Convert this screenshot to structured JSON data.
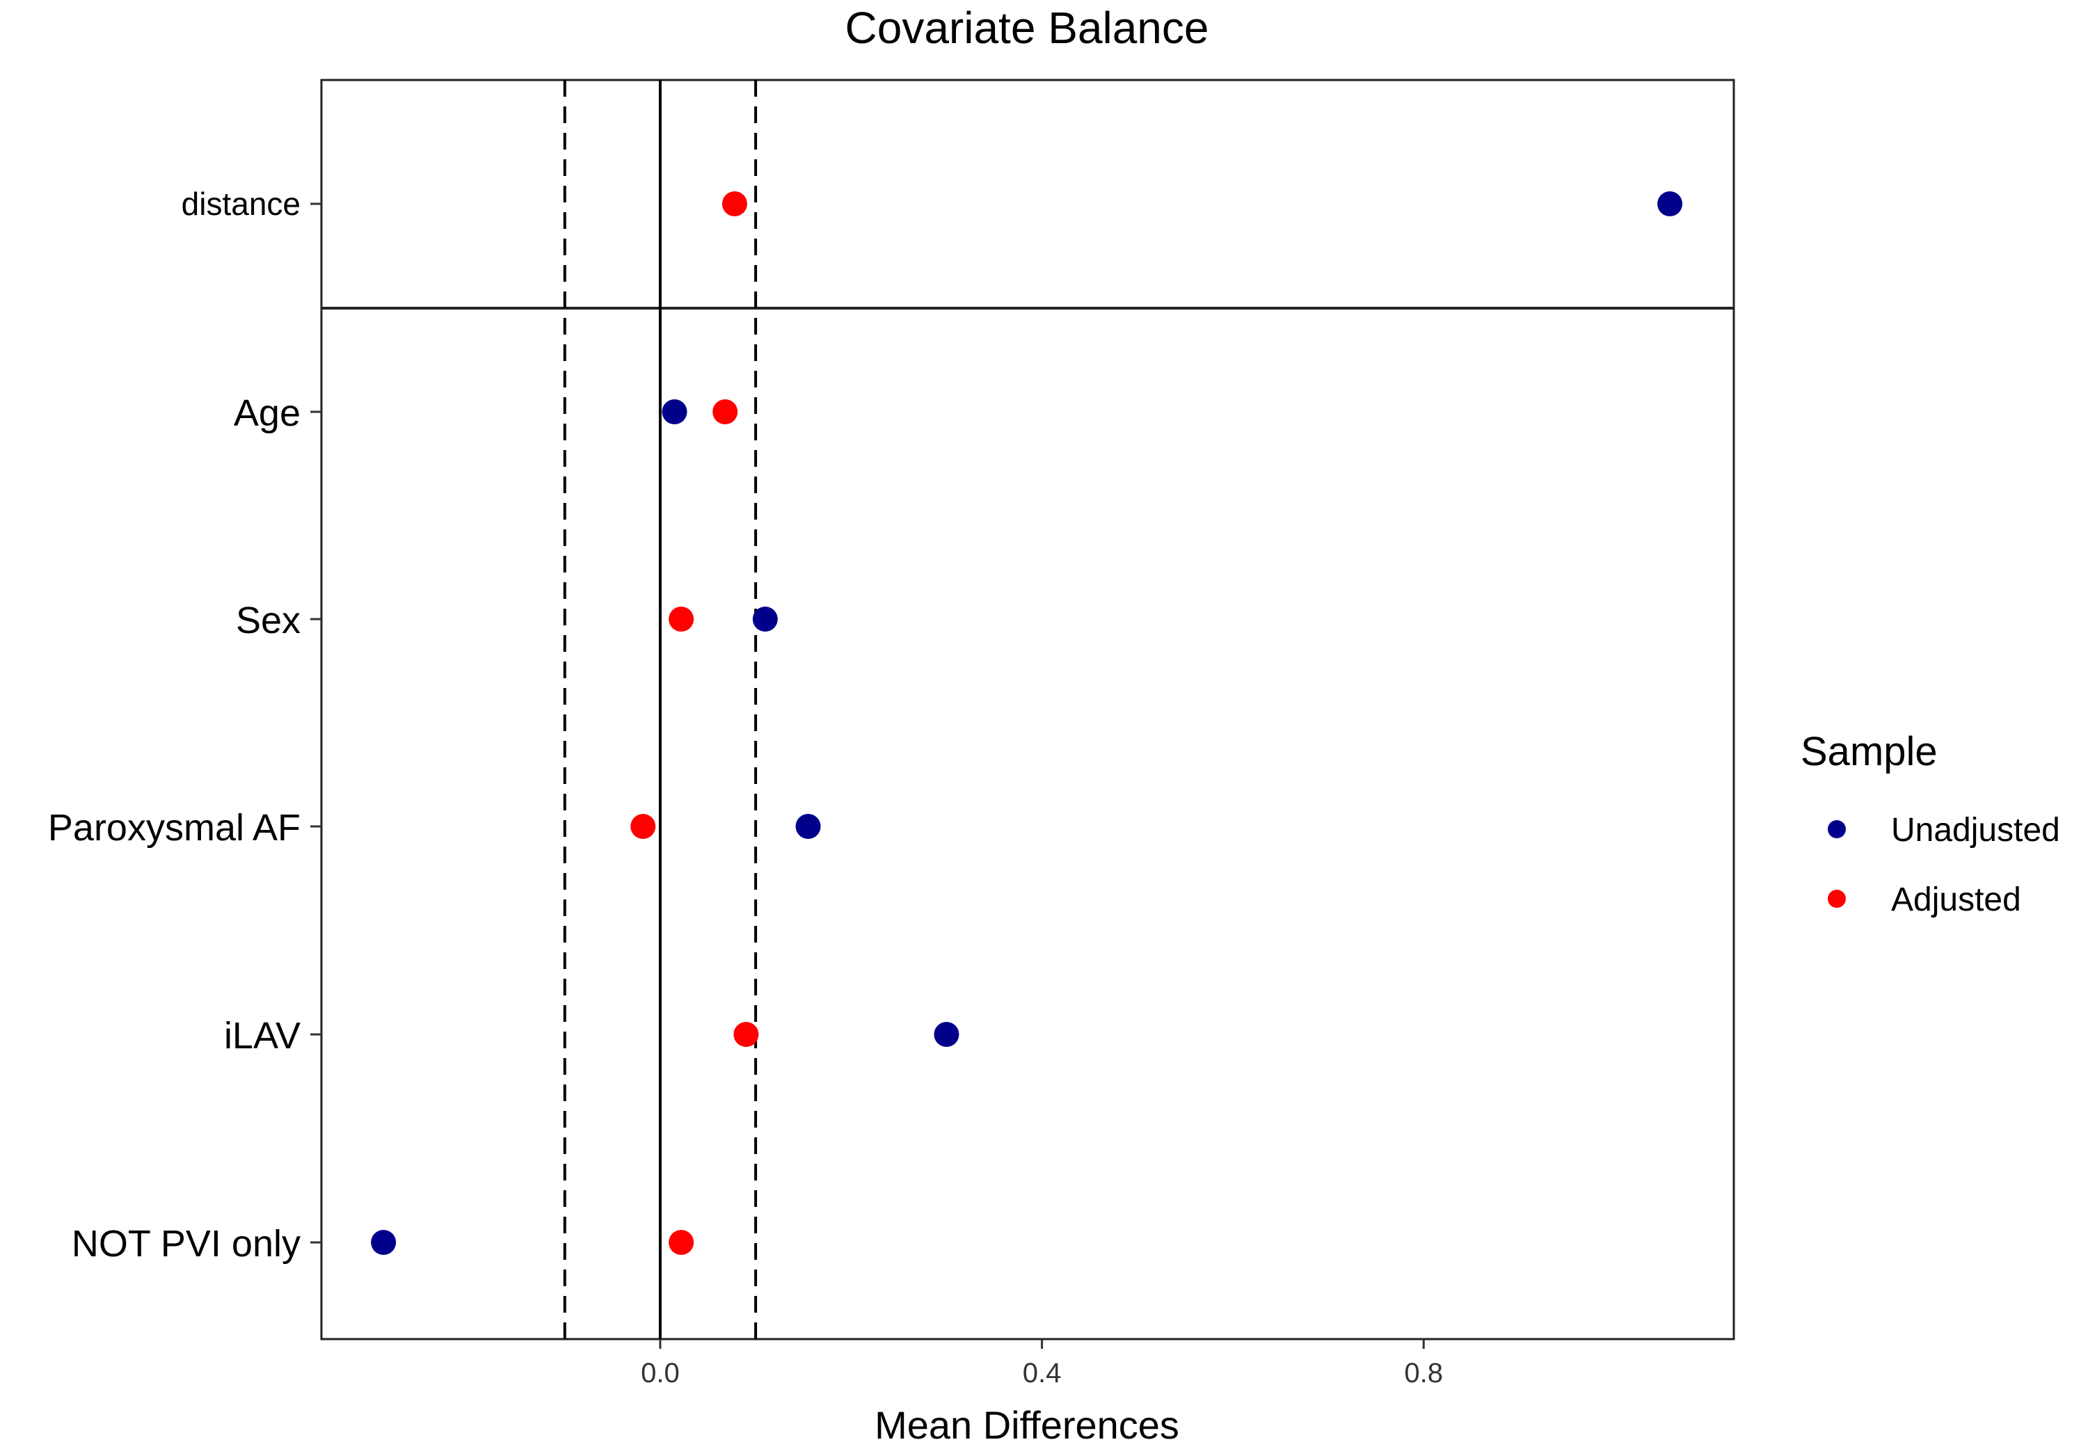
{
  "chart_data": {
    "type": "scatter",
    "title": "Covariate Balance",
    "xlabel": "Mean Differences",
    "ylabel": "",
    "xlim": [
      -0.355,
      1.125
    ],
    "x_ticks": [
      0.0,
      0.4,
      0.8
    ],
    "x_tick_labels": [
      "0.0",
      "0.4",
      "0.8"
    ],
    "threshold_lines": [
      -0.1,
      0.1
    ],
    "zero_line": 0,
    "grid": false,
    "categories": [
      "distance",
      "Age",
      "Sex",
      "Paroxysmal AF",
      "iLAV",
      "NOT PVI only"
    ],
    "series": [
      {
        "name": "Unadjusted",
        "color": "#00008B",
        "values": [
          1.058,
          0.015,
          0.11,
          0.155,
          0.3,
          -0.29
        ]
      },
      {
        "name": "Adjusted",
        "color": "#FF0000",
        "values": [
          0.078,
          0.068,
          0.022,
          -0.018,
          0.09,
          0.022
        ]
      }
    ],
    "legend": {
      "title": "Sample",
      "position": "right",
      "entries": [
        "Unadjusted",
        "Adjusted"
      ]
    }
  }
}
